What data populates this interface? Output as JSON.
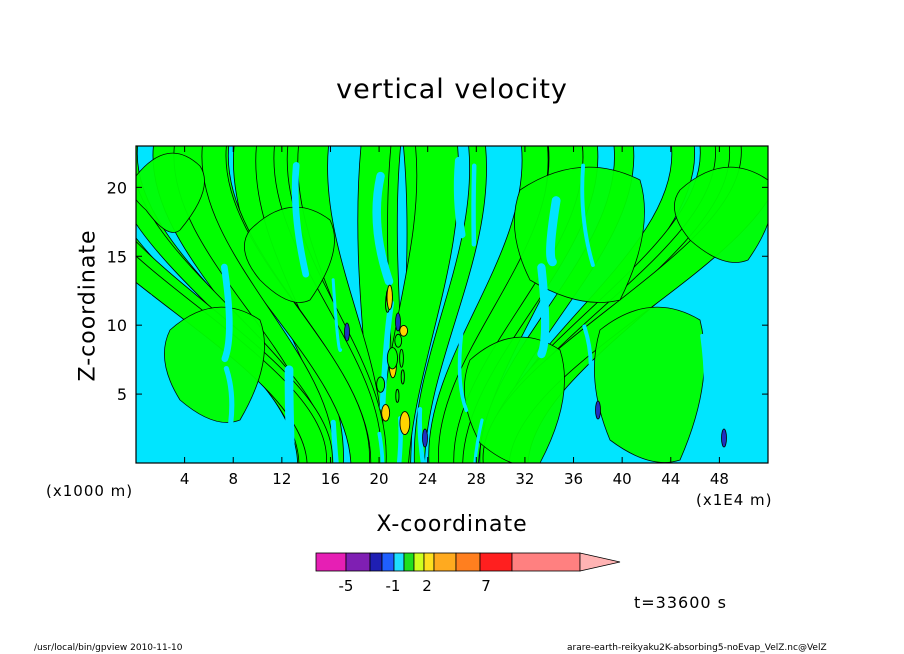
{
  "chart_data": {
    "type": "heatmap",
    "title": "vertical velocity",
    "xlabel": "X-coordinate",
    "ylabel": "Z-coordinate",
    "x_unit_left": "(x1000 m)",
    "x_unit_right": "(x1E4 m)",
    "xlim": [
      0,
      52
    ],
    "ylim": [
      0,
      23
    ],
    "x_ticks": [
      "4",
      "8",
      "12",
      "16",
      "20",
      "24",
      "28",
      "32",
      "36",
      "40",
      "44",
      "48"
    ],
    "x_tick_values": [
      4,
      8,
      12,
      16,
      20,
      24,
      28,
      32,
      36,
      40,
      44,
      48
    ],
    "y_ticks": [
      "5",
      "10",
      "15",
      "20"
    ],
    "y_tick_values": [
      5,
      10,
      15,
      20
    ],
    "colorbar": {
      "labels": [
        "-5",
        "-1",
        "2",
        "7"
      ],
      "colors": [
        "#e61fb4",
        "#7f1fb3",
        "#1f1fb3",
        "#1f5fff",
        "#1fdfff",
        "#1fdf1f",
        "#cfff1f",
        "#ffdf1f",
        "#ffaa1f",
        "#ff7f1f",
        "#ff1f1f",
        "#ff8080",
        "#ffb3b3"
      ]
    },
    "field_colors": {
      "positive": "#00ff00",
      "negative": "#00e5ff",
      "contour": "#000000",
      "strong": "#2030c0"
    }
  },
  "annotations": {
    "time": "t=33600 s",
    "footer_left": "/usr/local/bin/gpview   2010-11-10",
    "footer_right": "arare-earth-reikyaku2K-absorbing5-noEvap_VelZ.nc@VelZ"
  }
}
